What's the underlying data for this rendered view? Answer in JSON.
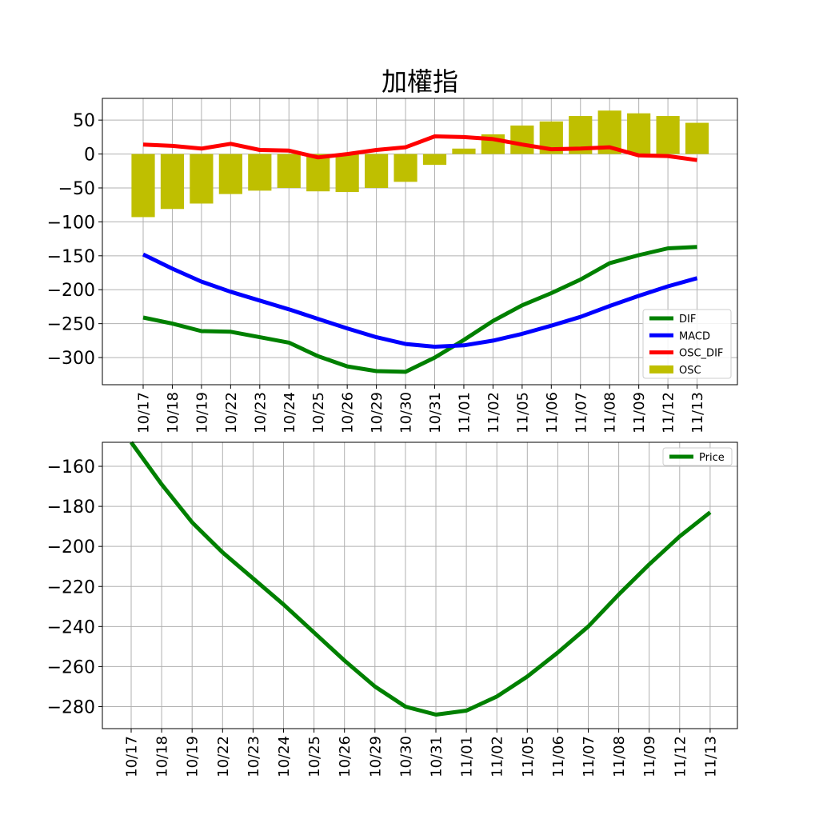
{
  "chart_data": [
    {
      "type": "bar+line",
      "title": "加權指",
      "categories": [
        "10/17",
        "10/18",
        "10/19",
        "10/22",
        "10/23",
        "10/24",
        "10/25",
        "10/26",
        "10/29",
        "10/30",
        "10/31",
        "11/01",
        "11/02",
        "11/05",
        "11/06",
        "11/07",
        "11/08",
        "11/09",
        "11/12",
        "11/13"
      ],
      "ylim": [
        -340,
        82
      ],
      "yticks": [
        50,
        0,
        -50,
        -100,
        -150,
        -200,
        -250,
        -300
      ],
      "ytick_labels": [
        "50",
        "0",
        "−50",
        "−100",
        "−150",
        "−200",
        "−250",
        "−300"
      ],
      "grid": true,
      "legend_position": "lower-right",
      "series": [
        {
          "name": "DIF",
          "type": "line",
          "color": "#008000",
          "values": [
            -241,
            -250,
            -261,
            -262,
            -270,
            -278,
            -298,
            -313,
            -320,
            -321,
            -300,
            -274,
            -246,
            -223,
            -205,
            -185,
            -161,
            -149,
            -139,
            -137
          ]
        },
        {
          "name": "MACD",
          "type": "line",
          "color": "#0000ff",
          "values": [
            -148,
            -169,
            -188,
            -203,
            -216,
            -229,
            -243,
            -257,
            -270,
            -280,
            -284,
            -282,
            -275,
            -265,
            -253,
            -240,
            -224,
            -209,
            -195,
            -183
          ]
        },
        {
          "name": "OSC_DIF",
          "type": "line",
          "color": "#ff0000",
          "values": [
            14,
            12,
            8,
            15,
            6,
            5,
            -5,
            0,
            6,
            10,
            26,
            25,
            22,
            14,
            7,
            8,
            10,
            -2,
            -3,
            -9
          ]
        },
        {
          "name": "OSC",
          "type": "bar",
          "color": "#bfbf00",
          "values": [
            -93,
            -81,
            -73,
            -59,
            -54,
            -50,
            -55,
            -56,
            -50,
            -41,
            -16,
            8,
            29,
            42,
            48,
            56,
            64,
            60,
            56,
            46
          ]
        }
      ]
    },
    {
      "type": "line",
      "categories": [
        "10/17",
        "10/18",
        "10/19",
        "10/22",
        "10/23",
        "10/24",
        "10/25",
        "10/26",
        "10/29",
        "10/30",
        "10/31",
        "11/01",
        "11/02",
        "11/05",
        "11/06",
        "11/07",
        "11/08",
        "11/09",
        "11/12",
        "11/13"
      ],
      "ylim": [
        -291,
        -148
      ],
      "yticks": [
        -160,
        -180,
        -200,
        -220,
        -240,
        -260,
        -280
      ],
      "ytick_labels": [
        "−160",
        "−180",
        "−200",
        "−220",
        "−240",
        "−260",
        "−280"
      ],
      "grid": true,
      "legend_position": "upper-right",
      "series": [
        {
          "name": "Price",
          "type": "line",
          "color": "#008000",
          "values": [
            -148,
            -169,
            -188,
            -203,
            -216,
            -229,
            -243,
            -257,
            -270,
            -280,
            -284,
            -282,
            -275,
            -265,
            -253,
            -240,
            -224,
            -209,
            -195,
            -183
          ]
        }
      ]
    }
  ]
}
